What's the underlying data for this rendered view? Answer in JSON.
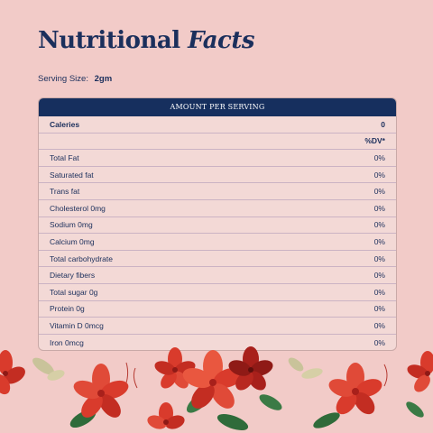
{
  "title": {
    "regular": "Nutritional",
    "italic": "Facts"
  },
  "serving": {
    "label": "Serving Size:",
    "value": "2gm"
  },
  "table": {
    "header": "AMOUNT PER SERVING",
    "calories": {
      "label": "Caleries",
      "value": "0"
    },
    "dv_label": "%DV*",
    "rows": [
      {
        "label": "Total Fat",
        "value": "0%"
      },
      {
        "label": "Saturated fat",
        "value": "0%"
      },
      {
        "label": "Trans fat",
        "value": "0%"
      },
      {
        "label": "Cholesterol 0mg",
        "value": "0%"
      },
      {
        "label": "Sodium 0mg",
        "value": "0%"
      },
      {
        "label": "Calcium 0mg",
        "value": "0%"
      },
      {
        "label": "Total carbohydrate",
        "value": "0%"
      },
      {
        "label": "Dietary fibers",
        "value": "0%"
      },
      {
        "label": "Total sugar 0g",
        "value": "0%"
      },
      {
        "label": "Protein 0g",
        "value": "0%"
      },
      {
        "label": "Vitamin D 0mcg",
        "value": "0%"
      },
      {
        "label": "Iron 0mcg",
        "value": "0%"
      }
    ]
  },
  "colors": {
    "background": "#f2cbc8",
    "navy": "#162f5e",
    "flower_red": "#d93b2c",
    "flower_dark": "#a8201b",
    "leaf_green": "#2f6b3a",
    "leaf_pale": "#c9c39a"
  }
}
